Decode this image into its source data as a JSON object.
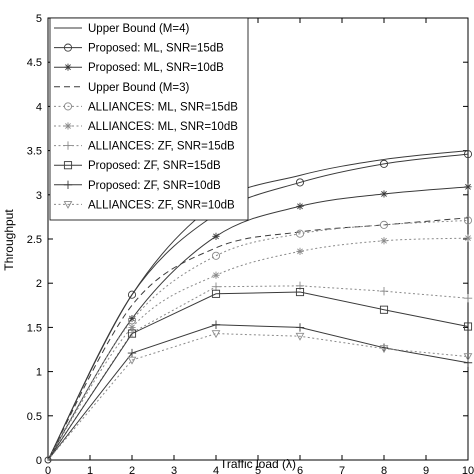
{
  "chart_data": {
    "type": "line",
    "xlabel": "Traffic load (λ)",
    "ylabel": "Throughput",
    "xlim": [
      0,
      10
    ],
    "ylim": [
      0,
      5
    ],
    "xticks": [
      0,
      1,
      2,
      3,
      4,
      5,
      6,
      7,
      8,
      9,
      10
    ],
    "yticks": [
      0,
      0.5,
      1,
      1.5,
      2,
      2.5,
      3,
      3.5,
      4,
      4.5,
      5
    ],
    "grid": false,
    "legend_position": "top-left",
    "x": [
      0,
      2,
      4,
      6,
      8,
      10
    ],
    "series": [
      {
        "name": "Upper Bound (M=4)",
        "values": [
          0,
          1.87,
          2.9,
          3.22,
          3.4,
          3.5
        ],
        "style": "solid",
        "marker": "none",
        "smooth": true
      },
      {
        "name": "Proposed: ML, SNR=15dB",
        "values": [
          0,
          1.87,
          2.78,
          3.14,
          3.35,
          3.46
        ],
        "style": "solid",
        "marker": "circle",
        "smooth": true
      },
      {
        "name": "Proposed: ML, SNR=10dB",
        "values": [
          0,
          1.6,
          2.53,
          2.87,
          3.01,
          3.09
        ],
        "style": "solid",
        "marker": "star",
        "smooth": true
      },
      {
        "name": "Upper Bound (M=3)",
        "values": [
          0,
          1.75,
          2.4,
          2.58,
          2.66,
          2.74
        ],
        "style": "dashed",
        "marker": "none",
        "smooth": true
      },
      {
        "name": "ALLIANCES: ML, SNR=15dB",
        "values": [
          0,
          1.58,
          2.31,
          2.56,
          2.66,
          2.71
        ],
        "style": "dotted",
        "marker": "circle",
        "smooth": true
      },
      {
        "name": "ALLIANCES: ML, SNR=10dB",
        "values": [
          0,
          1.5,
          2.09,
          2.36,
          2.48,
          2.51
        ],
        "style": "dotted",
        "marker": "star",
        "smooth": true
      },
      {
        "name": "ALLIANCES: ZF, SNR=15dB",
        "values": [
          0,
          1.44,
          1.96,
          1.97,
          1.91,
          1.83
        ],
        "style": "dotted",
        "marker": "plus",
        "smooth": false
      },
      {
        "name": "Proposed: ZF, SNR=15dB",
        "values": [
          0,
          1.43,
          1.88,
          1.9,
          1.7,
          1.51
        ],
        "style": "solid",
        "marker": "square",
        "smooth": false
      },
      {
        "name": "Proposed: ZF, SNR=10dB",
        "values": [
          0,
          1.21,
          1.53,
          1.5,
          1.27,
          1.1
        ],
        "style": "solid",
        "marker": "plus",
        "smooth": false
      },
      {
        "name": "ALLIANCES: ZF, SNR=10dB",
        "values": [
          0,
          1.13,
          1.43,
          1.4,
          1.26,
          1.17
        ],
        "style": "dotted",
        "marker": "triangle-down",
        "smooth": false
      }
    ]
  }
}
